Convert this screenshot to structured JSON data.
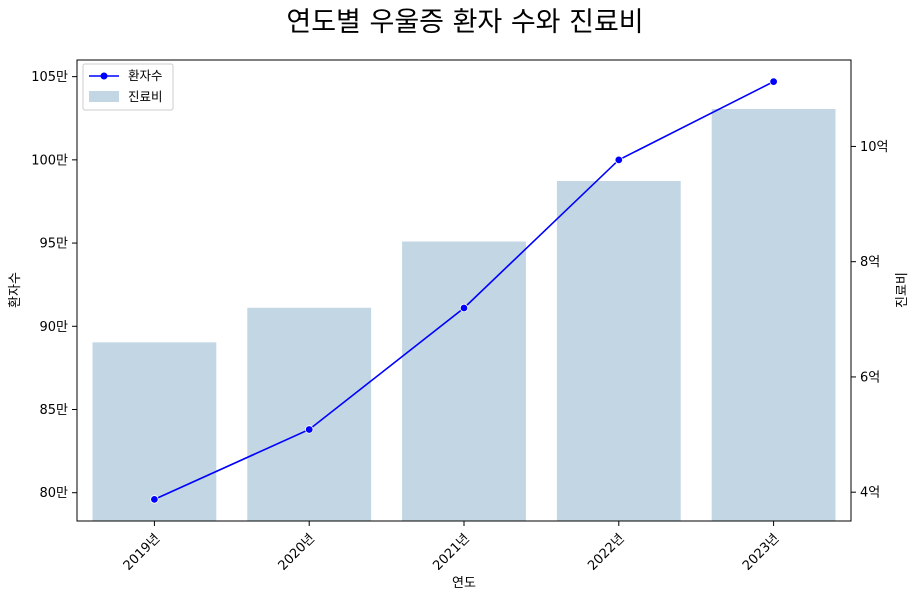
{
  "chart_data": {
    "type": "bar+line",
    "title": "연도별 우울증 환자 수와 진료비",
    "xlabel": "연도",
    "ylabel_left": "환자수",
    "ylabel_right": "진료비",
    "categories": [
      "2019년",
      "2020년",
      "2021년",
      "2022년",
      "2023년"
    ],
    "line_series": {
      "name": "환자수",
      "values": [
        796000,
        838000,
        911000,
        1000000,
        1047000
      ],
      "color": "#0000ff",
      "axis": "left"
    },
    "bar_series": {
      "name": "진료비",
      "values": [
        660000000,
        720000000,
        835000000,
        940000000,
        1065000000
      ],
      "color": "#c2d6e4",
      "axis": "right"
    },
    "left_axis": {
      "ylim": [
        783000,
        1060000
      ],
      "ticks": [
        800000,
        850000,
        900000,
        950000,
        1000000,
        1050000
      ],
      "tick_labels": [
        "80만",
        "85만",
        "90만",
        "95만",
        "100만",
        "105만"
      ]
    },
    "right_axis": {
      "ylim": [
        350000000,
        1150000000
      ],
      "ticks": [
        400000000,
        600000000,
        800000000,
        1000000000
      ],
      "tick_labels": [
        "4억",
        "6억",
        "8억",
        "10억"
      ]
    },
    "legend_position": "top-left",
    "grid": false
  }
}
